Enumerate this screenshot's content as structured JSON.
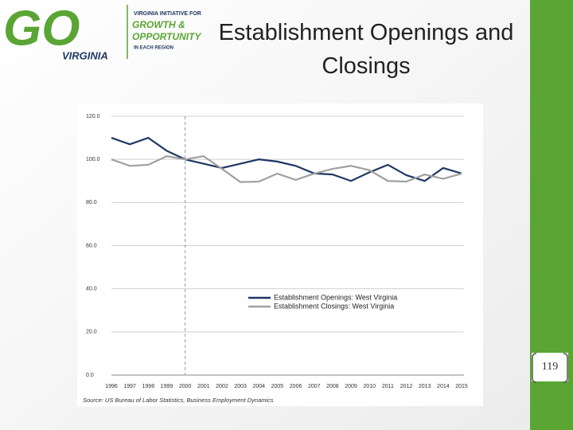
{
  "logo": {
    "mark": "GO",
    "sub": "VIRGINIA",
    "line1": "VIRGINIA INITIATIVE FOR",
    "line2": "GROWTH &",
    "line3": "OPPORTUNITY",
    "line4": "IN EACH REGION"
  },
  "title": "Establishment Openings and Closings",
  "page_number": "119",
  "chart_data": {
    "type": "line",
    "categories": [
      "1996",
      "1997",
      "1998",
      "1999",
      "2000",
      "2001",
      "2002",
      "2003",
      "2004",
      "2005",
      "2006",
      "2007",
      "2008",
      "2009",
      "2010",
      "2011",
      "2012",
      "2013",
      "2014",
      "2015"
    ],
    "series": [
      {
        "name": "Establishment Openings: West Virginia",
        "color": "#1f3864",
        "values": [
          110,
          107,
          110,
          104,
          100,
          98,
          96,
          98,
          100,
          99,
          97,
          93.5,
          93,
          90,
          94,
          97.5,
          92.7,
          90,
          96,
          93.5
        ]
      },
      {
        "name": "Establishment Closings: West Virginia",
        "color": "#a0a0a0",
        "values": [
          100,
          97,
          97.5,
          101.5,
          100,
          101.5,
          95.6,
          89.5,
          89.7,
          93.4,
          90.5,
          93.4,
          95.6,
          97,
          95,
          90,
          89.7,
          93,
          91,
          93.4
        ]
      }
    ],
    "ylim": [
      0,
      120
    ],
    "yticks": [
      {
        "value": 0,
        "label": "0.0"
      },
      {
        "value": 20,
        "label": "20.0"
      },
      {
        "value": 40,
        "label": "40.0"
      },
      {
        "value": 60,
        "label": "60.0"
      },
      {
        "value": 80,
        "label": "80.0"
      },
      {
        "value": 100,
        "label": "100.0"
      },
      {
        "value": 120,
        "label": "120.0"
      }
    ],
    "grid": true,
    "reference_category": "2000",
    "source": "Source: US Bureau of Labor Statistics, Business Employment Dynamics"
  }
}
